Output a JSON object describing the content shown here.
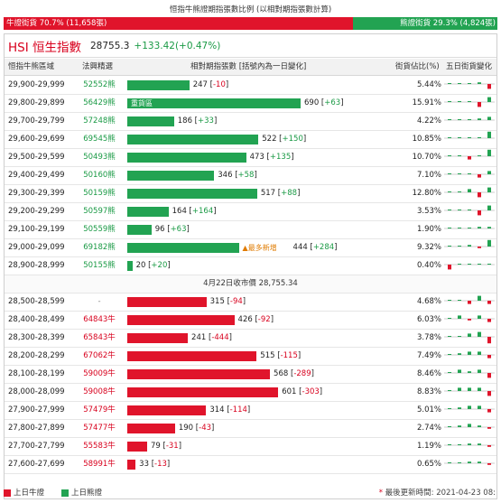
{
  "top": {
    "title": "恒指牛熊證期指張數比例 (以相對期指張數計算)",
    "bull_label": "牛證街貨 70.7% (11,658張)",
    "bull_pct": 70.7,
    "bear_label": "熊證街貨 29.3% (4,824張)",
    "bear_pct": 29.3
  },
  "index": {
    "name": "HSI 恒生指數",
    "price": "28755.3",
    "change": "+133.42(+0.47%)"
  },
  "columns": {
    "range": "恒指牛熊區域",
    "code": "法興精選",
    "bar": "相對期指張數 [括號內為一日變化]",
    "pct": "街貨佔比(%)",
    "spark": "五日街貨變化"
  },
  "colors": {
    "bear": "#22a352",
    "bull": "#e0142b",
    "accent": "#d8001d"
  },
  "bear_rows": [
    {
      "range": "29,900-29,999",
      "code": "52552熊",
      "value": 247,
      "change": "-10",
      "pct": "5.44%",
      "spark": [
        0,
        0,
        0,
        1,
        -3
      ]
    },
    {
      "range": "29,800-29,899",
      "code": "56429熊",
      "value": 690,
      "change": "+63",
      "pct": "15.91%",
      "tag": "重貨區",
      "spark": [
        0,
        0,
        0,
        -3,
        3
      ]
    },
    {
      "range": "29,700-29,799",
      "code": "57248熊",
      "value": 186,
      "change": "+33",
      "pct": "4.22%",
      "spark": [
        0,
        0,
        0,
        1,
        2
      ]
    },
    {
      "range": "29,600-29,699",
      "code": "69545熊",
      "value": 522,
      "change": "+150",
      "pct": "10.85%",
      "spark": [
        0,
        0,
        0,
        0,
        4
      ]
    },
    {
      "range": "29,500-29,599",
      "code": "50493熊",
      "value": 473,
      "change": "+135",
      "pct": "10.70%",
      "spark": [
        0,
        0,
        -2,
        0,
        4
      ]
    },
    {
      "range": "29,400-29,499",
      "code": "50160熊",
      "value": 346,
      "change": "+58",
      "pct": "7.10%",
      "spark": [
        0,
        0,
        0,
        -2,
        2
      ]
    },
    {
      "range": "29,300-29,399",
      "code": "50159熊",
      "value": 517,
      "change": "+88",
      "pct": "12.80%",
      "spark": [
        0,
        0,
        2,
        -3,
        3
      ]
    },
    {
      "range": "29,200-29,299",
      "code": "50597熊",
      "value": 164,
      "change": "+164",
      "pct": "3.53%",
      "spark": [
        0,
        0,
        0,
        -3,
        3
      ]
    },
    {
      "range": "29,100-29,199",
      "code": "50559熊",
      "value": 96,
      "change": "+63",
      "pct": "1.90%",
      "spark": [
        0,
        0,
        0,
        1,
        1
      ]
    },
    {
      "range": "29,000-29,099",
      "code": "69182熊",
      "value": 444,
      "change": "+284",
      "pct": "9.32%",
      "tag": "▲最多新增",
      "spark": [
        0,
        0,
        1,
        -1,
        4
      ]
    },
    {
      "range": "28,900-28,999",
      "code": "50155熊",
      "value": 20,
      "change": "+20",
      "pct": "0.40%",
      "spark": [
        -3,
        0,
        0,
        0,
        0
      ]
    }
  ],
  "close_row": "4月22日收市價 28,755.34",
  "bull_rows": [
    {
      "range": "28,500-28,599",
      "code": "-",
      "value": 315,
      "change": "-94",
      "pct": "4.68%",
      "spark": [
        0,
        0,
        -2,
        3,
        -2
      ]
    },
    {
      "range": "28,400-28,499",
      "code": "64843牛",
      "value": 426,
      "change": "-92",
      "pct": "6.03%",
      "spark": [
        0,
        2,
        -1,
        2,
        -2
      ]
    },
    {
      "range": "28,300-28,399",
      "code": "65843牛",
      "value": 241,
      "change": "-444",
      "pct": "3.78%",
      "spark": [
        0,
        0,
        2,
        3,
        -4
      ]
    },
    {
      "range": "28,200-28,299",
      "code": "67062牛",
      "value": 515,
      "change": "-115",
      "pct": "7.49%",
      "spark": [
        0,
        1,
        2,
        2,
        -2
      ]
    },
    {
      "range": "28,100-28,199",
      "code": "59009牛",
      "value": 568,
      "change": "-289",
      "pct": "8.46%",
      "spark": [
        0,
        2,
        1,
        2,
        -3
      ]
    },
    {
      "range": "28,000-28,099",
      "code": "59008牛",
      "value": 601,
      "change": "-303",
      "pct": "8.83%",
      "spark": [
        0,
        2,
        2,
        2,
        -3
      ]
    },
    {
      "range": "27,900-27,999",
      "code": "57479牛",
      "value": 314,
      "change": "-114",
      "pct": "5.01%",
      "spark": [
        0,
        1,
        2,
        2,
        -2
      ]
    },
    {
      "range": "27,800-27,899",
      "code": "57477牛",
      "value": 190,
      "change": "-43",
      "pct": "2.74%",
      "spark": [
        0,
        1,
        2,
        1,
        -1
      ]
    },
    {
      "range": "27,700-27,799",
      "code": "55583牛",
      "value": 79,
      "change": "-31",
      "pct": "1.19%",
      "spark": [
        0,
        0,
        1,
        1,
        -1
      ]
    },
    {
      "range": "27,600-27,699",
      "code": "58991牛",
      "value": 33,
      "change": "-13",
      "pct": "0.65%",
      "spark": [
        0,
        0,
        1,
        1,
        -1
      ]
    }
  ],
  "legend": {
    "bull": "上日牛證",
    "bear": "上日熊證",
    "updated": "最後更新時間: 2021-04-23 08:"
  },
  "chart_data": {
    "type": "bar",
    "title": "相對期指張數 [括號內為一日變化]",
    "series": [
      {
        "name": "熊證",
        "categories": [
          "29,900-29,999",
          "29,800-29,899",
          "29,700-29,799",
          "29,600-29,699",
          "29,500-29,599",
          "29,400-29,499",
          "29,300-29,399",
          "29,200-29,299",
          "29,100-29,199",
          "29,000-29,099",
          "28,900-28,999"
        ],
        "values": [
          247,
          690,
          186,
          522,
          473,
          346,
          517,
          164,
          96,
          444,
          20
        ],
        "changes": [
          -10,
          63,
          33,
          150,
          135,
          58,
          88,
          164,
          63,
          284,
          20
        ]
      },
      {
        "name": "牛證",
        "categories": [
          "28,500-28,599",
          "28,400-28,499",
          "28,300-28,399",
          "28,200-28,299",
          "28,100-28,199",
          "28,000-28,099",
          "27,900-27,999",
          "27,800-27,899",
          "27,700-27,799",
          "27,600-27,699"
        ],
        "values": [
          315,
          426,
          241,
          515,
          568,
          601,
          314,
          190,
          79,
          33
        ],
        "changes": [
          -94,
          -92,
          -444,
          -115,
          -289,
          -303,
          -114,
          -43,
          -31,
          -13
        ]
      }
    ],
    "xlim": [
      0,
      690
    ]
  }
}
